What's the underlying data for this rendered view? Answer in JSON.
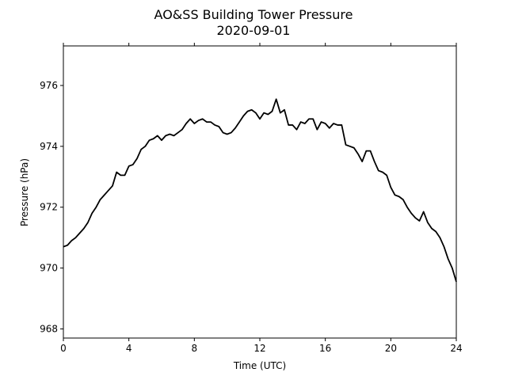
{
  "chart_data": {
    "type": "line",
    "title": "AO&SS Building Tower Pressure",
    "subtitle": "2020-09-01",
    "xlabel": "Time (UTC)",
    "ylabel": "Pressure (hPa)",
    "xlim": [
      0,
      24
    ],
    "ylim": [
      967.7,
      977.3
    ],
    "xticks": [
      0,
      4,
      8,
      12,
      16,
      20,
      24
    ],
    "yticks": [
      968,
      970,
      972,
      974,
      976
    ],
    "grid": false,
    "line_color": "#000000",
    "series": [
      {
        "x": [
          0,
          0.25,
          0.5,
          0.75,
          1.0,
          1.25,
          1.5,
          1.75,
          2.0,
          2.25,
          2.5,
          2.75,
          3.0,
          3.25,
          3.5,
          3.75,
          4.0,
          4.25,
          4.5,
          4.75,
          5.0,
          5.25,
          5.5,
          5.75,
          6.0,
          6.25,
          6.5,
          6.75,
          7.0,
          7.25,
          7.5,
          7.75,
          8.0,
          8.25,
          8.5,
          8.75,
          9.0,
          9.25,
          9.5,
          9.75,
          10.0,
          10.25,
          10.5,
          10.75,
          11.0,
          11.25,
          11.5,
          11.75,
          12.0,
          12.25,
          12.5,
          12.75,
          13.0,
          13.25,
          13.5,
          13.75,
          14.0,
          14.25,
          14.5,
          14.75,
          15.0,
          15.25,
          15.5,
          15.75,
          16.0,
          16.25,
          16.5,
          16.75,
          17.0,
          17.25,
          17.5,
          17.75,
          18.0,
          18.25,
          18.5,
          18.75,
          19.0,
          19.25,
          19.5,
          19.75,
          20.0,
          20.25,
          20.5,
          20.75,
          21.0,
          21.25,
          21.5,
          21.75,
          22.0,
          22.25,
          22.5,
          22.75,
          23.0,
          23.25,
          23.5,
          23.75,
          24.0
        ],
        "y": [
          970.7,
          970.75,
          970.9,
          971.0,
          971.15,
          971.3,
          971.5,
          971.8,
          972.0,
          972.25,
          972.4,
          972.55,
          972.7,
          973.15,
          973.05,
          973.05,
          973.35,
          973.4,
          973.6,
          973.9,
          974.0,
          974.2,
          974.25,
          974.35,
          974.2,
          974.35,
          974.4,
          974.35,
          974.45,
          974.55,
          974.75,
          974.9,
          974.75,
          974.85,
          974.9,
          974.8,
          974.8,
          974.7,
          974.65,
          974.45,
          974.4,
          974.45,
          974.6,
          974.8,
          975.0,
          975.15,
          975.2,
          975.1,
          974.9,
          975.1,
          975.05,
          975.15,
          975.55,
          975.1,
          975.2,
          974.7,
          974.7,
          974.55,
          974.8,
          974.75,
          974.9,
          974.9,
          974.55,
          974.8,
          974.75,
          974.6,
          974.75,
          974.7,
          974.7,
          974.05,
          974.0,
          973.95,
          973.75,
          973.5,
          973.85,
          973.85,
          973.5,
          973.2,
          973.15,
          973.05,
          972.65,
          972.4,
          972.35,
          972.25,
          972.0,
          971.8,
          971.65,
          971.55,
          971.85,
          971.5,
          971.3,
          971.2,
          971.0,
          970.7,
          970.3,
          970.0,
          969.55
        ]
      }
    ]
  }
}
